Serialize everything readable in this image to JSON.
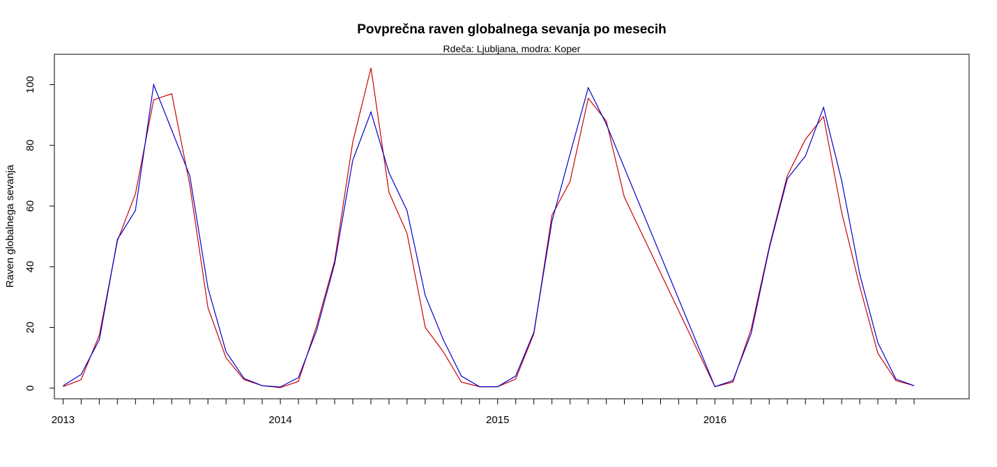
{
  "chart_data": {
    "type": "line",
    "title": "Povprečna raven globalnega sevanja po mesecih",
    "subtitle": "Rdeča: Ljubljana, modra: Koper",
    "xlabel": "",
    "ylabel": "Raven globalnega sevanja",
    "xlim": [
      2012.96,
      2017.17
    ],
    "ylim": [
      -3.5,
      110
    ],
    "x_ticks_labeled": [
      {
        "value": 2013,
        "label": "2013"
      },
      {
        "value": 2014,
        "label": "2014"
      },
      {
        "value": 2015,
        "label": "2015"
      },
      {
        "value": 2016,
        "label": "2016"
      }
    ],
    "x_minor_tick_step_months": 1,
    "y_ticks": [
      0,
      20,
      40,
      60,
      80,
      100
    ],
    "grid": false,
    "legend": "none",
    "series": [
      {
        "color": "#cc0000",
        "points": [
          [
            2013.0,
            0.5
          ],
          [
            2013.083,
            2.8
          ],
          [
            2013.167,
            17.5
          ],
          [
            2013.25,
            48.5
          ],
          [
            2013.333,
            64.0
          ],
          [
            2013.417,
            95.0
          ],
          [
            2013.5,
            97.0
          ],
          [
            2013.583,
            67.0
          ],
          [
            2013.667,
            26.5
          ],
          [
            2013.75,
            10.0
          ],
          [
            2013.833,
            2.8
          ],
          [
            2013.917,
            0.8
          ],
          [
            2014.0,
            0.2
          ],
          [
            2014.083,
            2.2
          ],
          [
            2014.167,
            20.5
          ],
          [
            2014.25,
            42.0
          ],
          [
            2014.333,
            81.0
          ],
          [
            2014.417,
            105.5
          ],
          [
            2014.5,
            64.5
          ],
          [
            2014.583,
            51.0
          ],
          [
            2014.667,
            20.0
          ],
          [
            2014.75,
            12.0
          ],
          [
            2014.833,
            2.0
          ],
          [
            2014.917,
            0.5
          ],
          [
            2015.0,
            0.5
          ],
          [
            2015.083,
            3.0
          ],
          [
            2015.167,
            18.0
          ],
          [
            2015.25,
            57.0
          ],
          [
            2015.333,
            68.0
          ],
          [
            2015.417,
            95.5
          ],
          [
            2015.5,
            88.0
          ],
          [
            2015.583,
            63.0
          ],
          [
            2016.0,
            0.5
          ],
          [
            2016.083,
            2.0
          ],
          [
            2016.167,
            19.5
          ],
          [
            2016.25,
            46.5
          ],
          [
            2016.333,
            70.0
          ],
          [
            2016.417,
            82.0
          ],
          [
            2016.5,
            89.5
          ],
          [
            2016.583,
            58.0
          ],
          [
            2016.667,
            33.5
          ],
          [
            2016.75,
            11.5
          ],
          [
            2016.833,
            2.5
          ],
          [
            2016.917,
            0.8
          ]
        ]
      },
      {
        "color": "#0000cc",
        "points": [
          [
            2013.0,
            0.8
          ],
          [
            2013.083,
            4.5
          ],
          [
            2013.167,
            16.0
          ],
          [
            2013.25,
            49.0
          ],
          [
            2013.333,
            58.5
          ],
          [
            2013.417,
            100.0
          ],
          [
            2013.5,
            85.0
          ],
          [
            2013.583,
            70.0
          ],
          [
            2013.667,
            33.0
          ],
          [
            2013.75,
            12.0
          ],
          [
            2013.833,
            3.2
          ],
          [
            2013.917,
            0.8
          ],
          [
            2014.0,
            0.4
          ],
          [
            2014.083,
            3.5
          ],
          [
            2014.167,
            19.0
          ],
          [
            2014.25,
            41.0
          ],
          [
            2014.333,
            75.0
          ],
          [
            2014.417,
            91.0
          ],
          [
            2014.5,
            71.0
          ],
          [
            2014.583,
            58.5
          ],
          [
            2014.667,
            30.5
          ],
          [
            2014.75,
            16.0
          ],
          [
            2014.833,
            4.0
          ],
          [
            2014.917,
            0.5
          ],
          [
            2015.0,
            0.5
          ],
          [
            2015.083,
            4.0
          ],
          [
            2015.167,
            18.5
          ],
          [
            2015.25,
            55.0
          ],
          [
            2015.333,
            77.0
          ],
          [
            2015.417,
            99.0
          ],
          [
            2015.5,
            87.0
          ],
          [
            2016.0,
            0.5
          ],
          [
            2016.083,
            2.5
          ],
          [
            2016.167,
            18.0
          ],
          [
            2016.25,
            46.0
          ],
          [
            2016.333,
            69.0
          ],
          [
            2016.417,
            76.5
          ],
          [
            2016.5,
            92.5
          ],
          [
            2016.583,
            68.5
          ],
          [
            2016.667,
            37.5
          ],
          [
            2016.75,
            15.0
          ],
          [
            2016.833,
            3.0
          ],
          [
            2016.917,
            0.8
          ]
        ]
      }
    ]
  }
}
